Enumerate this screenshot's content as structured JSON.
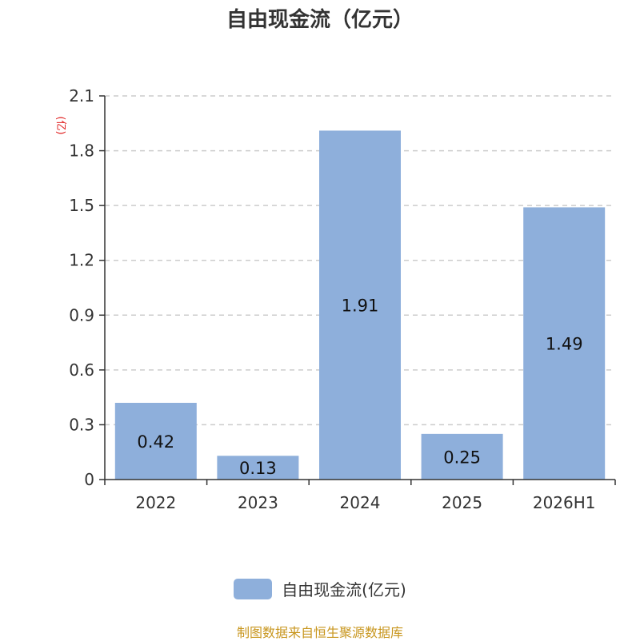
{
  "chart_data": {
    "type": "bar",
    "title": "自由现金流（亿元）",
    "ylabel": "(亿)",
    "categories": [
      "2022",
      "2023",
      "2024",
      "2025",
      "2026H1"
    ],
    "series": [
      {
        "name": "自由现金流(亿元)",
        "values": [
          0.42,
          0.13,
          1.91,
          0.25,
          1.49
        ]
      }
    ],
    "data_labels": [
      "0.42",
      "0.13",
      "1.91",
      "0.25",
      "1.49"
    ],
    "y_ticks": [
      "0",
      "0.3",
      "0.6",
      "0.9",
      "1.2",
      "1.5",
      "1.8",
      "2.1"
    ],
    "ylim": [
      0,
      2.1
    ],
    "grid": true,
    "legend_position": "bottom-center"
  },
  "source_text": "制图数据来自恒生聚源数据库",
  "colors": {
    "bar": "#8eafdb",
    "grid": "#cccccc",
    "axis": "#333333",
    "unit": "#e02020",
    "source": "#c8961e"
  }
}
